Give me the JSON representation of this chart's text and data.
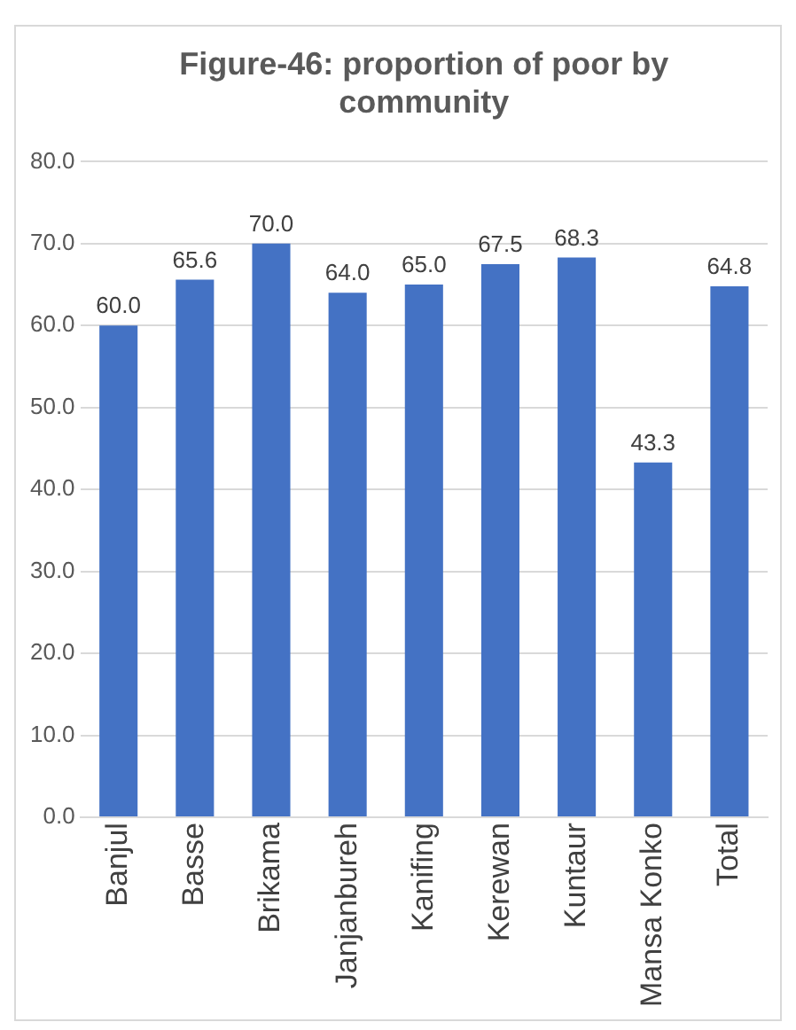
{
  "chart_data": {
    "type": "bar",
    "title": "Figure-46: proportion of poor by community",
    "categories": [
      "Banjul",
      "Basse",
      "Brikama",
      "Janjanbureh",
      "Kanifing",
      "Kerewan",
      "Kuntaur",
      "Mansa Konko",
      "Total"
    ],
    "values": [
      60.0,
      65.6,
      70.0,
      64.0,
      65.0,
      67.5,
      68.3,
      43.3,
      64.8
    ],
    "value_labels": [
      "60.0",
      "65.6",
      "70.0",
      "64.0",
      "65.0",
      "67.5",
      "68.3",
      "43.3",
      "64.8"
    ],
    "color": "#4472c4",
    "ylim": [
      0,
      80
    ],
    "yticks": [
      {
        "value": 0,
        "label": "0.0"
      },
      {
        "value": 10,
        "label": "10.0"
      },
      {
        "value": 20,
        "label": "20.0"
      },
      {
        "value": 30,
        "label": "30.0"
      },
      {
        "value": 40,
        "label": "40.0"
      },
      {
        "value": 50,
        "label": "50.0"
      },
      {
        "value": 60,
        "label": "60.0"
      },
      {
        "value": 70,
        "label": "70.0"
      },
      {
        "value": 80,
        "label": "80.0"
      }
    ],
    "grid": "y",
    "legend": false
  }
}
